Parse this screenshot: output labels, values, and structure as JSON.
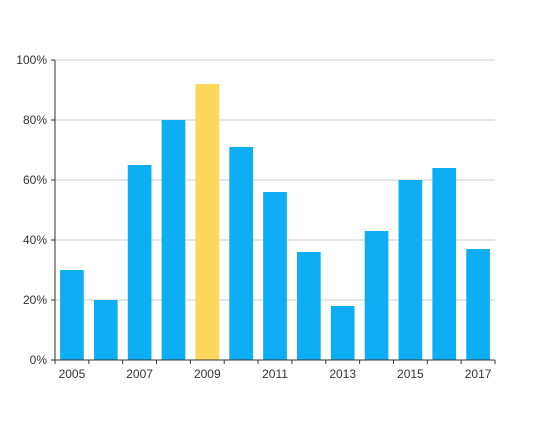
{
  "chart_data": {
    "type": "bar",
    "title": "",
    "xlabel": "",
    "ylabel": "",
    "categories": [
      "2005",
      "2006",
      "2007",
      "2008",
      "2009",
      "2010",
      "2011",
      "2012",
      "2013",
      "2014",
      "2015",
      "2016",
      "2017"
    ],
    "x_tick_labels": [
      "2005",
      "2007",
      "2009",
      "2011",
      "2013",
      "2015",
      "2017"
    ],
    "values": [
      30,
      20,
      65,
      80,
      92,
      71,
      56,
      36,
      18,
      43,
      60,
      64,
      37
    ],
    "ylim": [
      0,
      100
    ],
    "y_ticks": [
      0,
      20,
      40,
      60,
      80,
      100
    ],
    "y_tick_labels": [
      "0%",
      "20%",
      "40%",
      "60%",
      "80%",
      "100%"
    ],
    "grid": true,
    "legend": "none",
    "highlight_category": "2009",
    "colors": {
      "bar": "#0eaef5",
      "highlight": "#ffd75a",
      "grid": "#cccccc",
      "axis": "#333333"
    }
  }
}
